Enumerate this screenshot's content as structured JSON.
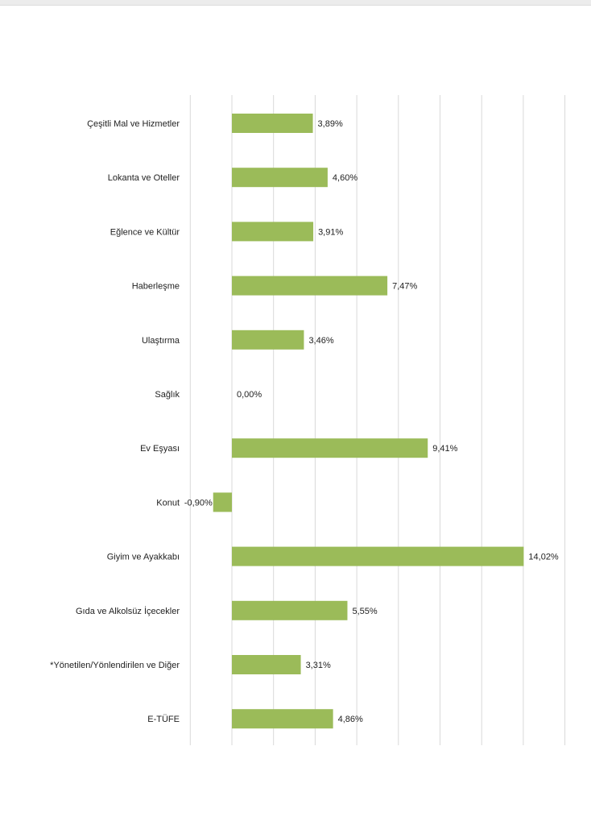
{
  "chart_data": {
    "type": "bar",
    "orientation": "horizontal",
    "categories": [
      "Çeşitli Mal ve Hizmetler",
      "Lokanta ve Oteller",
      "Eğlence ve Kültür",
      "Haberleşme",
      "Ulaştırma",
      "Sağlık",
      "Ev Eşyası",
      "Konut",
      "Giyim ve Ayakkabı",
      "Gıda ve Alkolsüz İçecekler",
      "*Yönetilen/Yönlendirilen ve Diğer",
      "E-TÜFE"
    ],
    "values": [
      3.89,
      4.6,
      3.91,
      7.47,
      3.46,
      0.0,
      9.41,
      -0.9,
      14.02,
      5.55,
      3.31,
      4.86
    ],
    "data_labels": [
      "3,89%",
      "4,60%",
      "3,91%",
      "7,47%",
      "3,46%",
      "0,00%",
      "9,41%",
      "-0,90%",
      "14,02%",
      "5,55%",
      "3,31%",
      "4,86%"
    ],
    "xlim": [
      -2,
      16
    ],
    "grid_step": 2,
    "grid": true,
    "title": "",
    "xlabel": "",
    "ylabel": "",
    "bar_color": "#9bbb59",
    "legend": "none"
  }
}
